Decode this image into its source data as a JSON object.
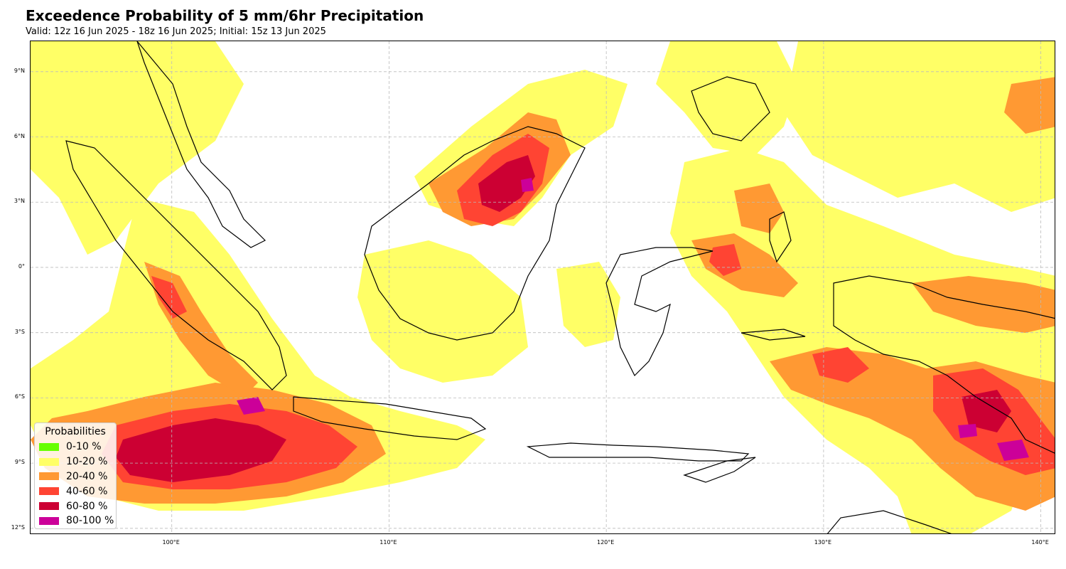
{
  "title": "Exceedence Probability of 5 mm/6hr Precipitation",
  "subtitle": "Valid: 12z 16 Jun 2025 - 18z 16 Jun 2025; Initial: 15z 13 Jun 2025",
  "map": {
    "lon_range": [
      93.5,
      140.7
    ],
    "lat_range": [
      -12.3,
      10.4
    ],
    "lat_ticks": [
      {
        "value": 9,
        "label": "9°N"
      },
      {
        "value": 6,
        "label": "6°N"
      },
      {
        "value": 3,
        "label": "3°N"
      },
      {
        "value": 0,
        "label": "0°"
      },
      {
        "value": -3,
        "label": "3°S"
      },
      {
        "value": -6,
        "label": "6°S"
      },
      {
        "value": -9,
        "label": "9°S"
      },
      {
        "value": -12,
        "label": "12°S"
      }
    ],
    "lon_ticks": [
      {
        "value": 100,
        "label": "100°E"
      },
      {
        "value": 110,
        "label": "110°E"
      },
      {
        "value": 120,
        "label": "120°E"
      },
      {
        "value": 130,
        "label": "130°E"
      },
      {
        "value": 140,
        "label": "140°E"
      }
    ],
    "gridlines": true,
    "coastline_color": "#000000"
  },
  "legend": {
    "title": "Probabilities",
    "placement": "lower-left",
    "items": [
      {
        "label": "0-10 %",
        "color": "#66ff00"
      },
      {
        "label": "10-20 %",
        "color": "#ffff66"
      },
      {
        "label": "20-40 %",
        "color": "#ff9933"
      },
      {
        "label": "40-60 %",
        "color": "#ff4433"
      },
      {
        "label": "60-80 %",
        "color": "#cc0033"
      },
      {
        "label": "80-100 %",
        "color": "#cc0099"
      }
    ]
  }
}
